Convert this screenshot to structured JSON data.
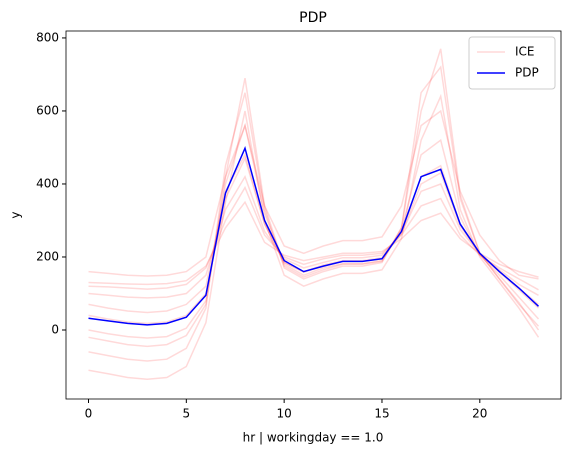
{
  "chart_data": {
    "type": "line",
    "title": "PDP",
    "xlabel": "hr | workingday == 1.0",
    "ylabel": "y",
    "x": [
      0,
      1,
      2,
      3,
      4,
      5,
      6,
      7,
      8,
      9,
      10,
      11,
      12,
      13,
      14,
      15,
      16,
      17,
      18,
      19,
      20,
      21,
      22,
      23
    ],
    "xlim": [
      -1.15,
      24.15
    ],
    "xticks": [
      0,
      5,
      10,
      15,
      20
    ],
    "ylim": [
      -189,
      819
    ],
    "yticks": [
      0,
      200,
      400,
      600,
      800
    ],
    "legend": "upper right",
    "series": [
      {
        "name": "ICE",
        "color": "#ff0000",
        "alpha": 0.15,
        "lines": [
          [
            160,
            155,
            150,
            148,
            150,
            160,
            200,
            420,
            560,
            340,
            230,
            210,
            230,
            245,
            245,
            255,
            340,
            560,
            600,
            380,
            260,
            190,
            150,
            140
          ],
          [
            -110,
            -120,
            -130,
            -135,
            -130,
            -100,
            20,
            350,
            600,
            300,
            150,
            120,
            140,
            155,
            155,
            165,
            250,
            520,
            640,
            330,
            200,
            130,
            60,
            -20
          ],
          [
            120,
            118,
            115,
            112,
            115,
            125,
            170,
            300,
            390,
            260,
            200,
            180,
            195,
            205,
            205,
            210,
            260,
            340,
            360,
            260,
            205,
            170,
            140,
            110
          ],
          [
            -60,
            -70,
            -80,
            -85,
            -80,
            -50,
            60,
            450,
            650,
            330,
            170,
            140,
            160,
            175,
            175,
            185,
            280,
            650,
            720,
            360,
            210,
            140,
            70,
            10
          ],
          [
            70,
            60,
            52,
            48,
            52,
            70,
            120,
            380,
            480,
            290,
            185,
            160,
            178,
            190,
            190,
            198,
            270,
            420,
            450,
            290,
            210,
            160,
            115,
            70
          ],
          [
            0,
            -10,
            -18,
            -22,
            -18,
            5,
            80,
            400,
            560,
            320,
            180,
            150,
            170,
            182,
            182,
            190,
            275,
            480,
            520,
            310,
            205,
            150,
            90,
            30
          ],
          [
            130,
            128,
            126,
            125,
            127,
            135,
            175,
            280,
            350,
            240,
            205,
            190,
            200,
            210,
            210,
            215,
            250,
            300,
            320,
            250,
            210,
            180,
            160,
            145
          ],
          [
            -20,
            -30,
            -40,
            -45,
            -40,
            -15,
            70,
            420,
            690,
            340,
            175,
            145,
            165,
            180,
            180,
            188,
            280,
            600,
            770,
            370,
            210,
            140,
            75,
            0
          ],
          [
            40,
            30,
            22,
            18,
            22,
            40,
            100,
            360,
            470,
            290,
            185,
            158,
            175,
            188,
            188,
            195,
            265,
            400,
            430,
            285,
            208,
            158,
            110,
            60
          ],
          [
            100,
            95,
            90,
            88,
            90,
            100,
            150,
            330,
            420,
            270,
            195,
            170,
            185,
            198,
            198,
            205,
            265,
            380,
            400,
            275,
            208,
            165,
            125,
            95
          ]
        ]
      },
      {
        "name": "PDP",
        "color": "#0000ff",
        "values": [
          32,
          25,
          18,
          14,
          18,
          35,
          95,
          375,
          498,
          300,
          190,
          160,
          175,
          188,
          188,
          195,
          270,
          420,
          440,
          290,
          210,
          160,
          115,
          65
        ]
      }
    ]
  }
}
